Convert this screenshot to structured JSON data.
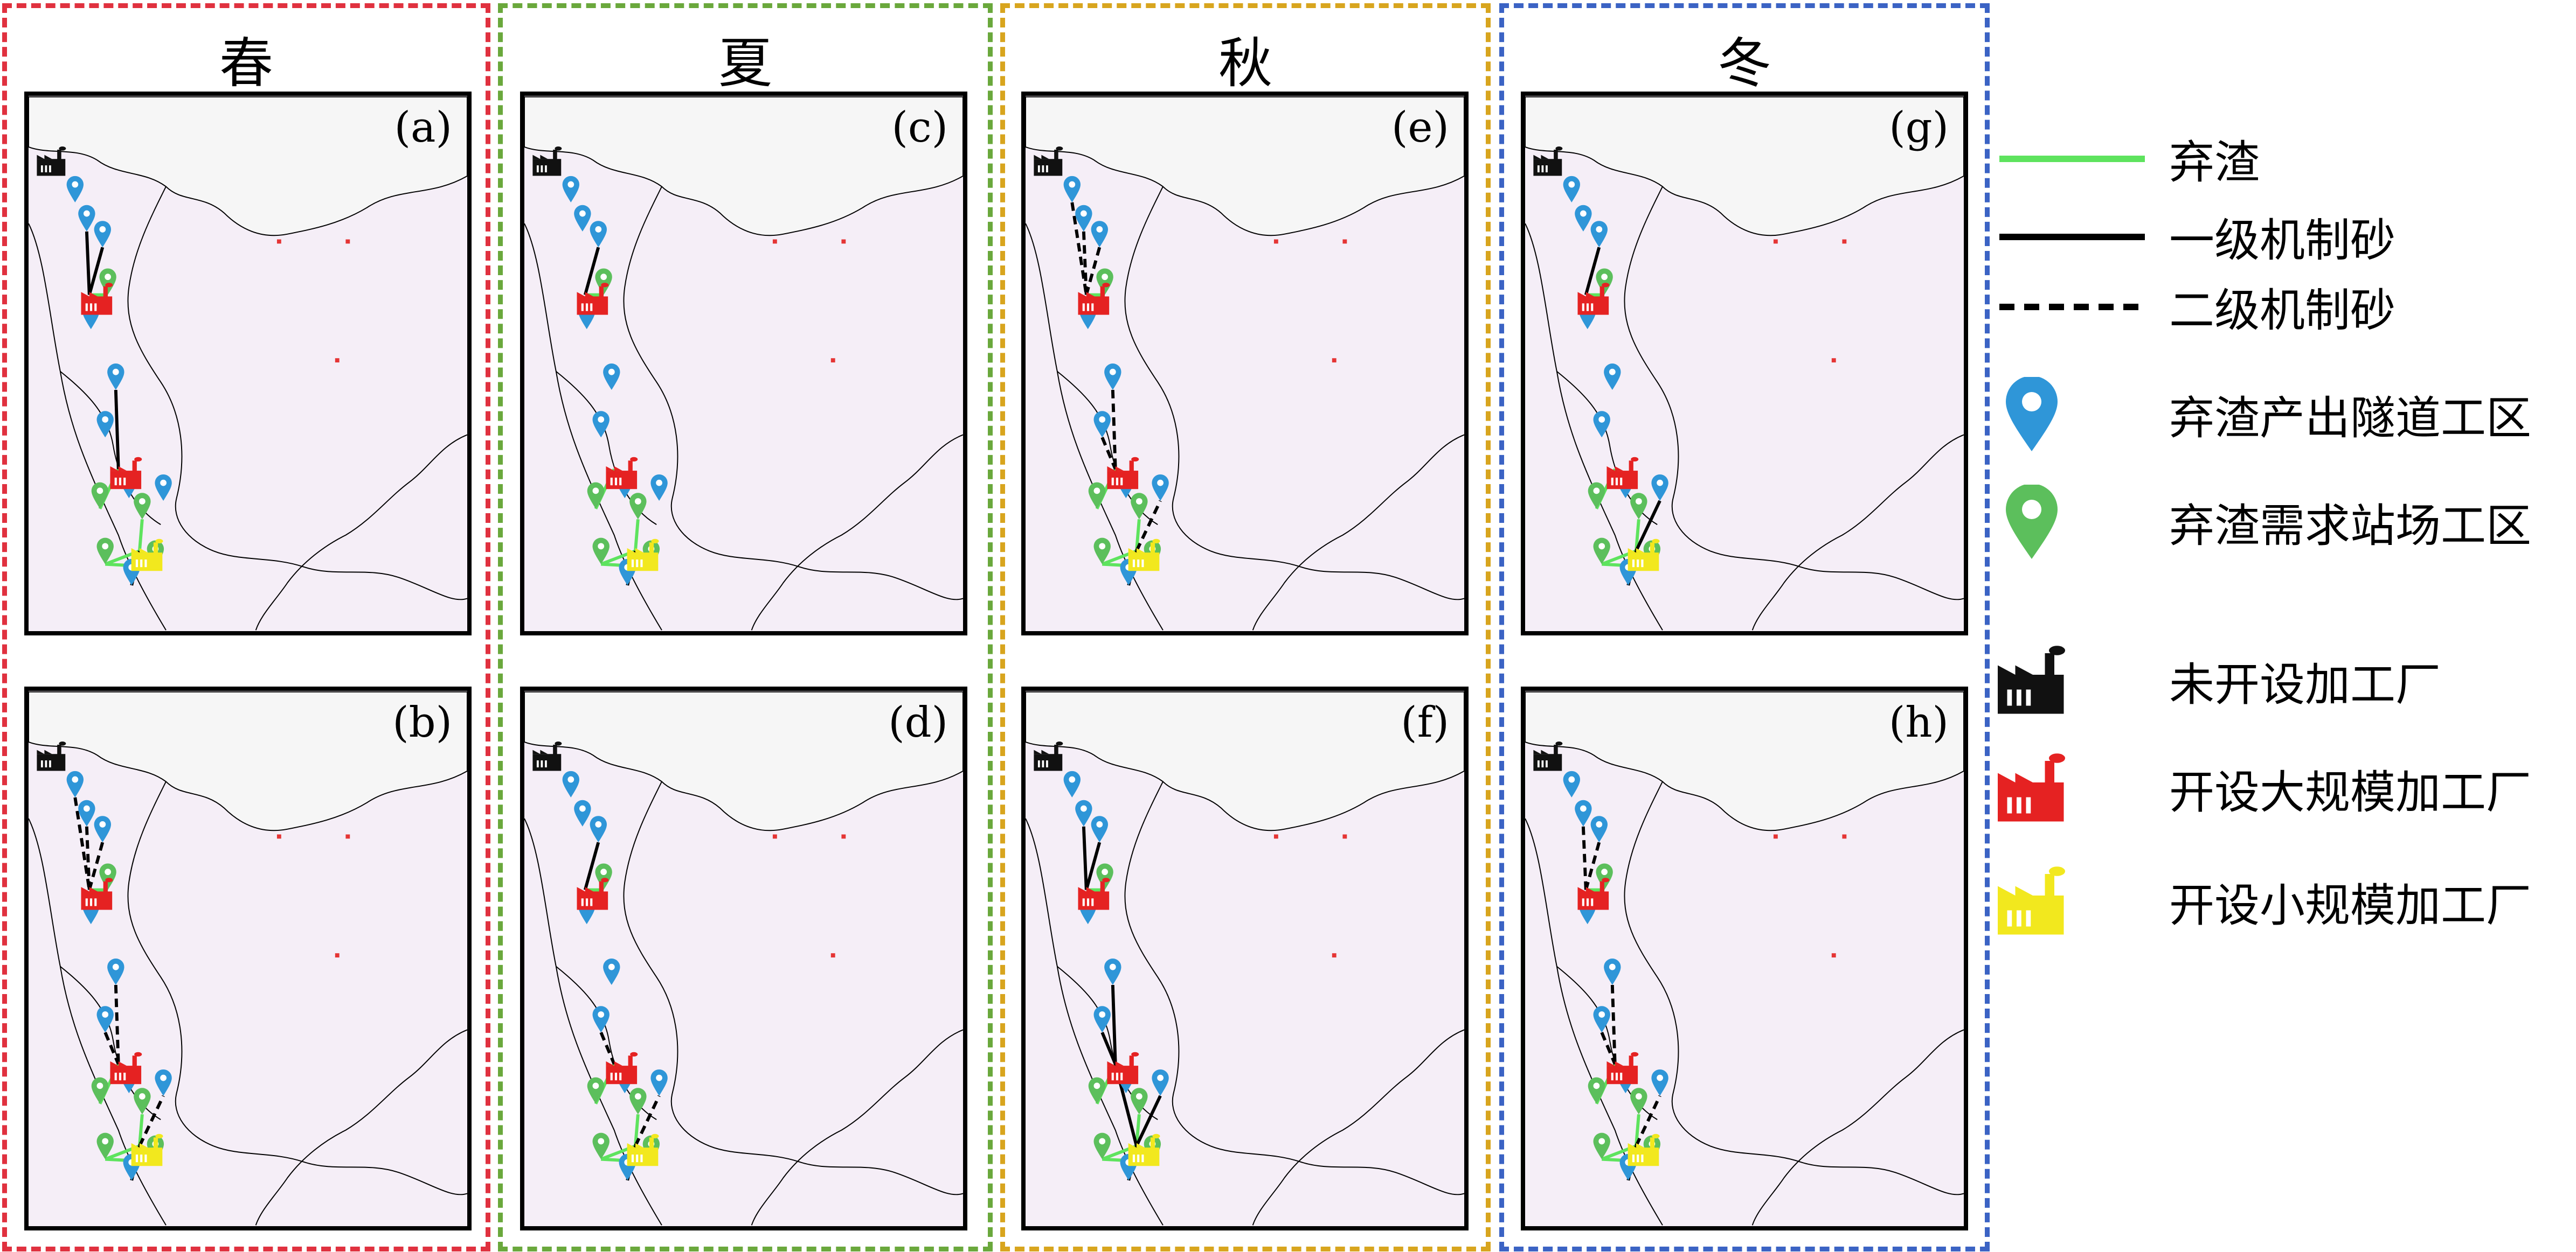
{
  "seasons": [
    {
      "label": "春",
      "color": "#e0313f"
    },
    {
      "label": "夏",
      "color": "#6aa83c"
    },
    {
      "label": "秋",
      "color": "#d8a51e"
    },
    {
      "label": "冬",
      "color": "#3b63c4"
    }
  ],
  "panels": [
    {
      "label": "(a)",
      "scenario": "一级机制砂"
    },
    {
      "label": "(b)",
      "scenario": "二级机制砂"
    },
    {
      "label": "(c)",
      "scenario": "一级机制砂"
    },
    {
      "label": "(d)",
      "scenario": "二级机制砂"
    },
    {
      "label": "(e)",
      "scenario": "二级机制砂"
    },
    {
      "label": "(f)",
      "scenario": "一级机制砂"
    },
    {
      "label": "(g)",
      "scenario": "一级机制砂"
    },
    {
      "label": "(h)",
      "scenario": "二级机制砂"
    }
  ],
  "legend": {
    "spoil": "弃渣",
    "primary_sand": "一级机制砂",
    "secondary_sand": "二级机制砂",
    "tunnel_site": "弃渣产出隧道工区",
    "station_site": "弃渣需求站场工区",
    "factory_closed": "未开设加工厂",
    "factory_large": "开设大规模加工厂",
    "factory_small": "开设小规模加工厂"
  },
  "colors": {
    "spoil_line": "#5ee35e",
    "tunnel_pin": "#2f96d8",
    "station_pin": "#5cbf5c",
    "factory_closed": "#111111",
    "factory_large": "#e52222",
    "factory_small": "#f2e81e",
    "map_fill": "#f5eef7",
    "map_upper": "#f6f6f6"
  },
  "icons": [
    "location-pin-icon",
    "factory-icon"
  ]
}
